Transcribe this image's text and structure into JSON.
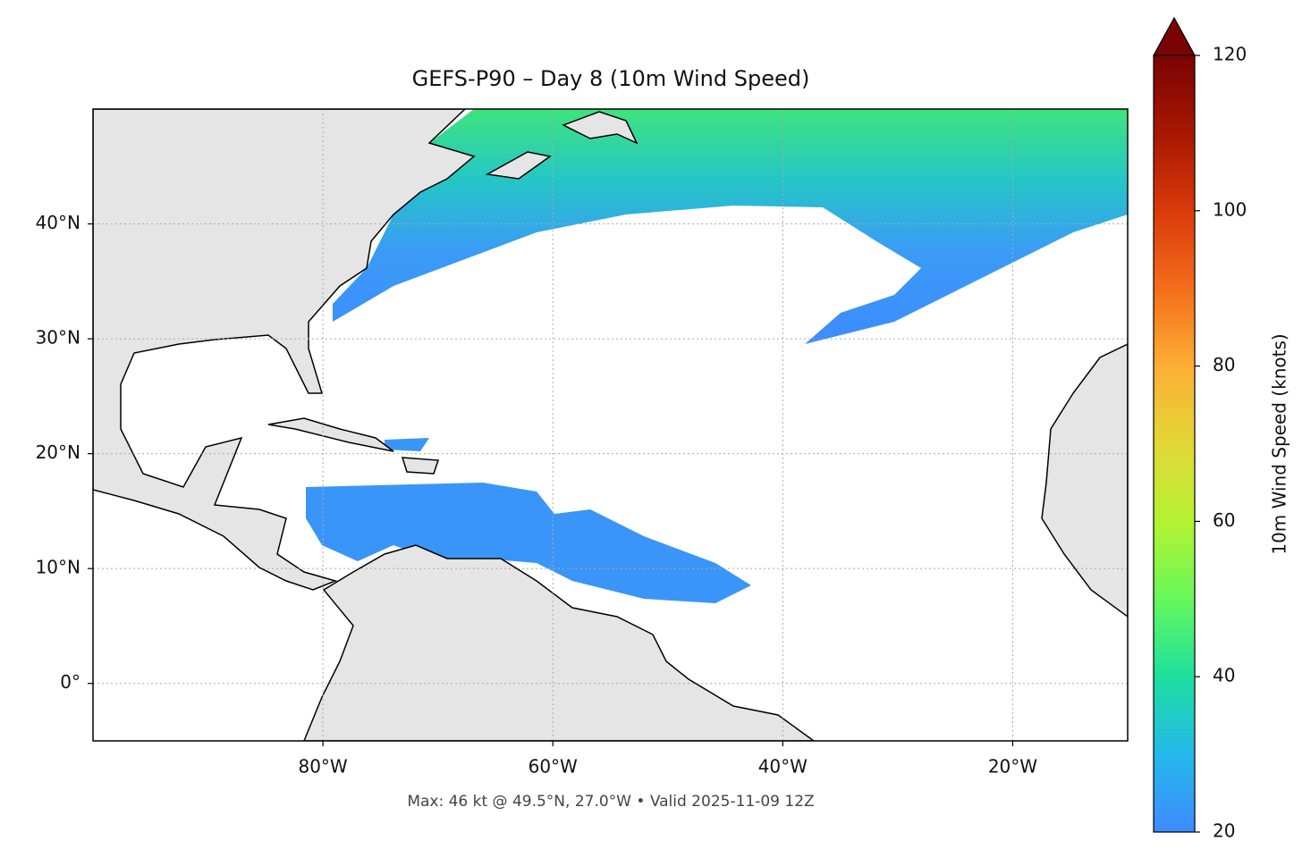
{
  "map": {
    "title": "GEFS-P90 – Day 8 (10m Wind Speed)",
    "footer": "Max: 46 kt @ 49.5°N, 27.0°W • Valid 2025-11-09 12Z",
    "xlim": [
      -100,
      -10
    ],
    "ylim": [
      -5,
      50
    ],
    "xticks": [
      {
        "value": -80,
        "label": "80°W"
      },
      {
        "value": -60,
        "label": "60°W"
      },
      {
        "value": -40,
        "label": "40°W"
      },
      {
        "value": -20,
        "label": "20°W"
      }
    ],
    "yticks": [
      {
        "value": 0,
        "label": "0°"
      },
      {
        "value": 10,
        "label": "10°N"
      },
      {
        "value": 20,
        "label": "20°N"
      },
      {
        "value": 30,
        "label": "30°N"
      },
      {
        "value": 40,
        "label": "40°N"
      }
    ],
    "grid": true,
    "colorbar": {
      "label": "10m Wind Speed (knots)",
      "lim": [
        20,
        120
      ],
      "ticks": [
        20,
        40,
        60,
        80,
        100,
        120
      ]
    }
  }
}
